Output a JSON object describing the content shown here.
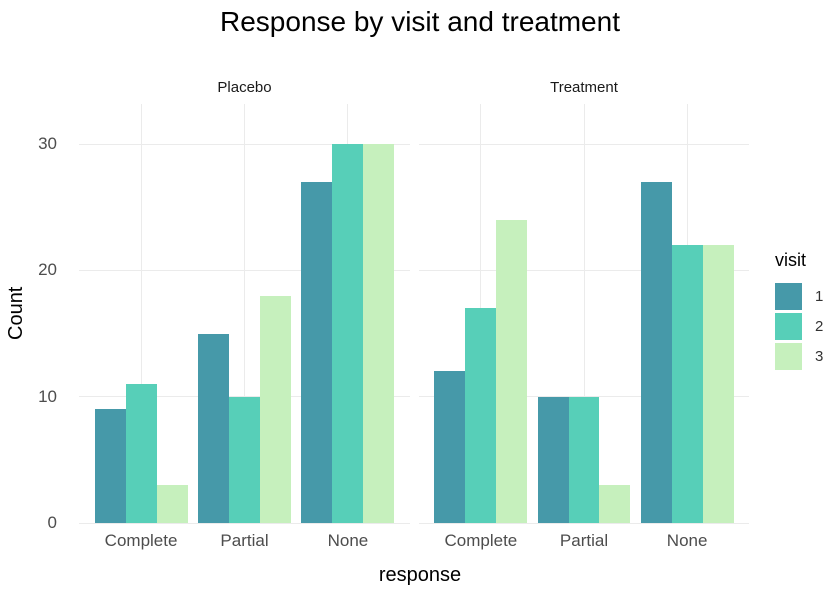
{
  "chart_data": {
    "type": "bar",
    "title": "Response by visit and treatment",
    "xlabel": "response",
    "ylabel": "Count",
    "categories": [
      "Complete",
      "Partial",
      "None"
    ],
    "yticks": [
      0,
      10,
      20,
      30
    ],
    "ylim": [
      0,
      33
    ],
    "grid": "major",
    "legend_position": "right",
    "legend_title": "visit",
    "series_labels": [
      "1",
      "2",
      "3"
    ],
    "series_colors": [
      "#4699a9",
      "#57cfb8",
      "#c6f0bd"
    ],
    "gridline_color": "#ebebeb",
    "axis_text_color": "#4d4d4d",
    "facets": [
      {
        "label": "Placebo",
        "series": [
          {
            "name": "1",
            "values": [
              9,
              15,
              27
            ]
          },
          {
            "name": "2",
            "values": [
              11,
              10,
              30
            ]
          },
          {
            "name": "3",
            "values": [
              3,
              18,
              30
            ]
          }
        ]
      },
      {
        "label": "Treatment",
        "series": [
          {
            "name": "1",
            "values": [
              12,
              10,
              27
            ]
          },
          {
            "name": "2",
            "values": [
              17,
              10,
              22
            ]
          },
          {
            "name": "3",
            "values": [
              24,
              3,
              22
            ]
          }
        ]
      }
    ]
  }
}
